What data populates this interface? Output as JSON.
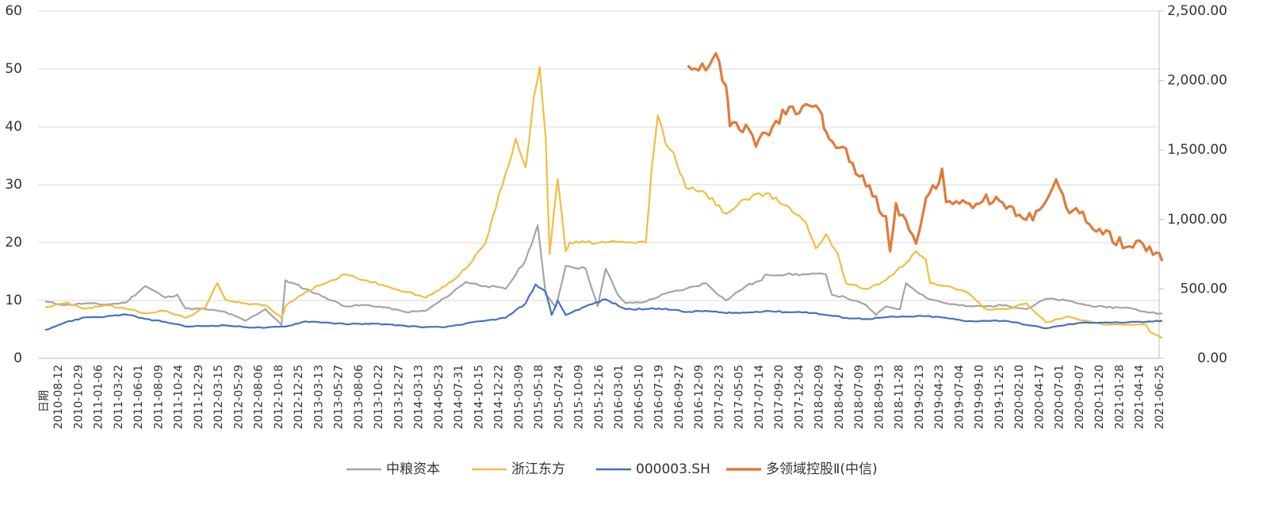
{
  "chart_data": {
    "type": "line",
    "x_axis_label": "日期",
    "x_tick_labels": [
      "2010-08-12",
      "2010-10-29",
      "2011-01-06",
      "2011-03-22",
      "2011-06-01",
      "2011-08-09",
      "2011-10-24",
      "2011-12-29",
      "2012-03-15",
      "2012-05-29",
      "2012-08-06",
      "2012-10-18",
      "2012-12-25",
      "2013-03-13",
      "2013-05-27",
      "2013-08-06",
      "2013-10-22",
      "2013-12-27",
      "2014-03-13",
      "2014-05-23",
      "2014-07-31",
      "2014-10-15",
      "2014-12-22",
      "2015-03-09",
      "2015-05-18",
      "2015-07-24",
      "2015-10-09",
      "2015-12-16",
      "2016-03-01",
      "2016-05-10",
      "2016-07-19",
      "2016-09-27",
      "2016-12-09",
      "2017-02-23",
      "2017-05-05",
      "2017-07-14",
      "2017-09-20",
      "2017-12-04",
      "2018-02-09",
      "2018-04-27",
      "2018-07-09",
      "2018-09-13",
      "2018-11-28",
      "2019-02-13",
      "2019-04-23",
      "2019-07-04",
      "2019-09-10",
      "2019-11-25",
      "2020-02-10",
      "2020-04-17",
      "2020-07-01",
      "2020-09-07",
      "2020-11-20",
      "2021-01-28",
      "2021-04-14",
      "2021-06-25"
    ],
    "y_left": {
      "ylim": [
        0,
        60
      ],
      "ticks": [
        "0",
        "10",
        "20",
        "30",
        "40",
        "50",
        "60"
      ]
    },
    "y_right": {
      "ylim": [
        0,
        2500
      ],
      "ticks": [
        "0.00",
        "500.00",
        "1,000.00",
        "1,500.00",
        "2,000.00",
        "2,500.00"
      ]
    },
    "grid": "horizontal",
    "legend_position": "bottom",
    "series": [
      {
        "name": "中粮资本",
        "color": "#A5A5A5",
        "axis": "left",
        "points": [
          [
            0,
            9.8
          ],
          [
            1,
            9.2
          ],
          [
            2,
            9.5
          ],
          [
            3,
            9.3
          ],
          [
            4,
            9.6
          ],
          [
            5,
            12.5
          ],
          [
            6,
            10.5
          ],
          [
            6.6,
            11
          ],
          [
            7,
            8.6
          ],
          [
            8,
            8.5
          ],
          [
            9,
            8.0
          ],
          [
            10,
            6.5
          ],
          [
            11,
            8.5
          ],
          [
            11.8,
            5.8
          ],
          [
            12,
            13.5
          ],
          [
            13,
            12.0
          ],
          [
            14,
            10.5
          ],
          [
            15,
            9.0
          ],
          [
            16,
            9.2
          ],
          [
            17,
            8.8
          ],
          [
            18,
            8.0
          ],
          [
            19,
            8.2
          ],
          [
            20,
            10.5
          ],
          [
            21,
            13.2
          ],
          [
            22,
            12.5
          ],
          [
            23,
            12.0
          ],
          [
            24,
            17.0
          ],
          [
            24.6,
            23.0
          ],
          [
            25,
            11.0
          ],
          [
            25.5,
            8.8
          ],
          [
            26,
            16.0
          ],
          [
            27,
            15.5
          ],
          [
            27.6,
            9.0
          ],
          [
            28,
            15.5
          ],
          [
            28.6,
            11.0
          ],
          [
            29,
            9.5
          ],
          [
            30,
            9.8
          ],
          [
            31,
            11.2
          ],
          [
            32,
            12.0
          ],
          [
            33,
            13.0
          ],
          [
            34,
            10.0
          ],
          [
            35,
            12.5
          ],
          [
            35.8,
            13.5
          ],
          [
            36,
            14.5
          ],
          [
            37,
            14.5
          ],
          [
            38,
            14.5
          ],
          [
            39,
            14.5
          ],
          [
            39.3,
            11.0
          ],
          [
            40,
            10.5
          ],
          [
            41,
            9.2
          ],
          [
            41.5,
            7.5
          ],
          [
            42,
            9.0
          ],
          [
            42.7,
            8.5
          ],
          [
            43,
            13.0
          ],
          [
            44,
            10.5
          ],
          [
            45,
            9.5
          ],
          [
            46,
            9.0
          ],
          [
            47,
            9.0
          ],
          [
            48,
            9.2
          ],
          [
            49,
            8.5
          ],
          [
            50,
            10.3
          ],
          [
            51,
            10.0
          ],
          [
            52,
            9.2
          ],
          [
            53,
            8.8
          ],
          [
            54,
            8.8
          ],
          [
            55,
            8.0
          ],
          [
            55.8,
            7.8
          ]
        ]
      },
      {
        "name": "浙江东方",
        "color": "#F1BE3E",
        "axis": "left",
        "points": [
          [
            0,
            8.8
          ],
          [
            1,
            9.6
          ],
          [
            2,
            8.6
          ],
          [
            3,
            9.2
          ],
          [
            4,
            8.6
          ],
          [
            5,
            7.8
          ],
          [
            6,
            8.2
          ],
          [
            7,
            7.0
          ],
          [
            8,
            8.8
          ],
          [
            8.6,
            13.0
          ],
          [
            9,
            10.2
          ],
          [
            10,
            9.5
          ],
          [
            11,
            9.2
          ],
          [
            11.8,
            7.0
          ],
          [
            12,
            9.0
          ],
          [
            13,
            11.5
          ],
          [
            14,
            13.0
          ],
          [
            15,
            14.5
          ],
          [
            16,
            13.5
          ],
          [
            17,
            12.5
          ],
          [
            18,
            11.5
          ],
          [
            19,
            10.5
          ],
          [
            20,
            12.5
          ],
          [
            21,
            15.5
          ],
          [
            22,
            20.0
          ],
          [
            23,
            32.0
          ],
          [
            23.5,
            38.0
          ],
          [
            24,
            33.0
          ],
          [
            24.4,
            45.0
          ],
          [
            24.7,
            50.3
          ],
          [
            25,
            38.0
          ],
          [
            25.2,
            18.0
          ],
          [
            25.6,
            31.0
          ],
          [
            26,
            18.5
          ],
          [
            26.2,
            20.0
          ],
          [
            27,
            20.0
          ],
          [
            28,
            20.0
          ],
          [
            29,
            20.0
          ],
          [
            30,
            20.0
          ],
          [
            30.3,
            33.0
          ],
          [
            30.6,
            42.0
          ],
          [
            31,
            37.0
          ],
          [
            31.4,
            35.5
          ],
          [
            32,
            29.5
          ],
          [
            33,
            28.5
          ],
          [
            34,
            25.0
          ],
          [
            35,
            27.5
          ],
          [
            36,
            28.5
          ],
          [
            37,
            26.5
          ],
          [
            38,
            23.5
          ],
          [
            38.5,
            19.0
          ],
          [
            39,
            21.5
          ],
          [
            39.6,
            18.0
          ],
          [
            40,
            13.0
          ],
          [
            41,
            12.0
          ],
          [
            42,
            13.5
          ],
          [
            43,
            16.5
          ],
          [
            43.5,
            18.5
          ],
          [
            44,
            17.0
          ],
          [
            44.2,
            13.0
          ],
          [
            45,
            12.5
          ],
          [
            46,
            11.5
          ],
          [
            47,
            8.5
          ],
          [
            48,
            8.5
          ],
          [
            49,
            9.5
          ],
          [
            50,
            6.2
          ],
          [
            51,
            7.2
          ],
          [
            52,
            6.5
          ],
          [
            53,
            5.8
          ],
          [
            54,
            5.8
          ],
          [
            55,
            5.8
          ],
          [
            55.2,
            4.5
          ],
          [
            55.8,
            3.5
          ]
        ]
      },
      {
        "name": "000003.SH",
        "color": "#4472C4",
        "axis": "left",
        "points": [
          [
            0,
            4.9
          ],
          [
            1,
            6.2
          ],
          [
            2,
            7.1
          ],
          [
            3,
            7.2
          ],
          [
            4,
            7.6
          ],
          [
            5,
            6.8
          ],
          [
            6,
            6.3
          ],
          [
            7,
            5.5
          ],
          [
            8,
            5.6
          ],
          [
            9,
            5.7
          ],
          [
            10,
            5.4
          ],
          [
            11,
            5.3
          ],
          [
            12,
            5.5
          ],
          [
            13,
            6.4
          ],
          [
            14,
            6.2
          ],
          [
            15,
            5.9
          ],
          [
            16,
            6.0
          ],
          [
            17,
            5.9
          ],
          [
            18,
            5.6
          ],
          [
            19,
            5.4
          ],
          [
            20,
            5.4
          ],
          [
            21,
            6.0
          ],
          [
            22,
            6.5
          ],
          [
            23,
            7.0
          ],
          [
            24,
            9.5
          ],
          [
            24.5,
            12.8
          ],
          [
            25,
            11.5
          ],
          [
            25.3,
            7.5
          ],
          [
            25.6,
            10.0
          ],
          [
            26,
            7.5
          ],
          [
            27,
            9.0
          ],
          [
            28,
            10.2
          ],
          [
            29,
            8.5
          ],
          [
            30,
            8.5
          ],
          [
            31,
            8.6
          ],
          [
            32,
            8.0
          ],
          [
            33,
            8.2
          ],
          [
            34,
            7.8
          ],
          [
            35,
            7.9
          ],
          [
            36,
            8.2
          ],
          [
            37,
            8.0
          ],
          [
            38,
            8.0
          ],
          [
            39,
            7.5
          ],
          [
            40,
            7.0
          ],
          [
            41,
            6.8
          ],
          [
            42,
            7.1
          ],
          [
            43,
            7.2
          ],
          [
            44,
            7.3
          ],
          [
            45,
            7.0
          ],
          [
            46,
            6.4
          ],
          [
            47,
            6.5
          ],
          [
            48,
            6.5
          ],
          [
            49,
            5.8
          ],
          [
            50,
            5.2
          ],
          [
            51,
            5.8
          ],
          [
            52,
            6.2
          ],
          [
            53,
            6.2
          ],
          [
            54,
            6.2
          ],
          [
            55,
            6.3
          ],
          [
            55.8,
            6.5
          ]
        ]
      },
      {
        "name": "多领域控股Ⅱ(中信)",
        "color": "#E07B39",
        "axis": "right",
        "points": [
          [
            32.1,
            2108
          ],
          [
            33,
            2108
          ],
          [
            33.5,
            2180
          ],
          [
            34,
            1950
          ],
          [
            34.2,
            1700
          ],
          [
            35,
            1650
          ],
          [
            35.5,
            1560
          ],
          [
            36,
            1600
          ],
          [
            36.5,
            1700
          ],
          [
            37,
            1780
          ],
          [
            38,
            1800
          ],
          [
            38.5,
            1850
          ],
          [
            38.8,
            1720
          ],
          [
            39,
            1600
          ],
          [
            40,
            1500
          ],
          [
            40.5,
            1350
          ],
          [
            41,
            1250
          ],
          [
            41.5,
            1150
          ],
          [
            42,
            1000
          ],
          [
            42.2,
            790
          ],
          [
            42.5,
            1100
          ],
          [
            43,
            1000
          ],
          [
            43.5,
            850
          ],
          [
            44,
            1150
          ],
          [
            44.5,
            1250
          ],
          [
            44.8,
            1350
          ],
          [
            45,
            1150
          ],
          [
            46,
            1100
          ],
          [
            47,
            1150
          ],
          [
            48,
            1100
          ],
          [
            49,
            1000
          ],
          [
            49.5,
            1050
          ],
          [
            50,
            1150
          ],
          [
            50.5,
            1250
          ],
          [
            51,
            1100
          ],
          [
            52,
            1000
          ],
          [
            53,
            900
          ],
          [
            54,
            800
          ],
          [
            54.5,
            830
          ],
          [
            55,
            800
          ],
          [
            55.5,
            760
          ],
          [
            55.8,
            720
          ]
        ]
      }
    ]
  }
}
